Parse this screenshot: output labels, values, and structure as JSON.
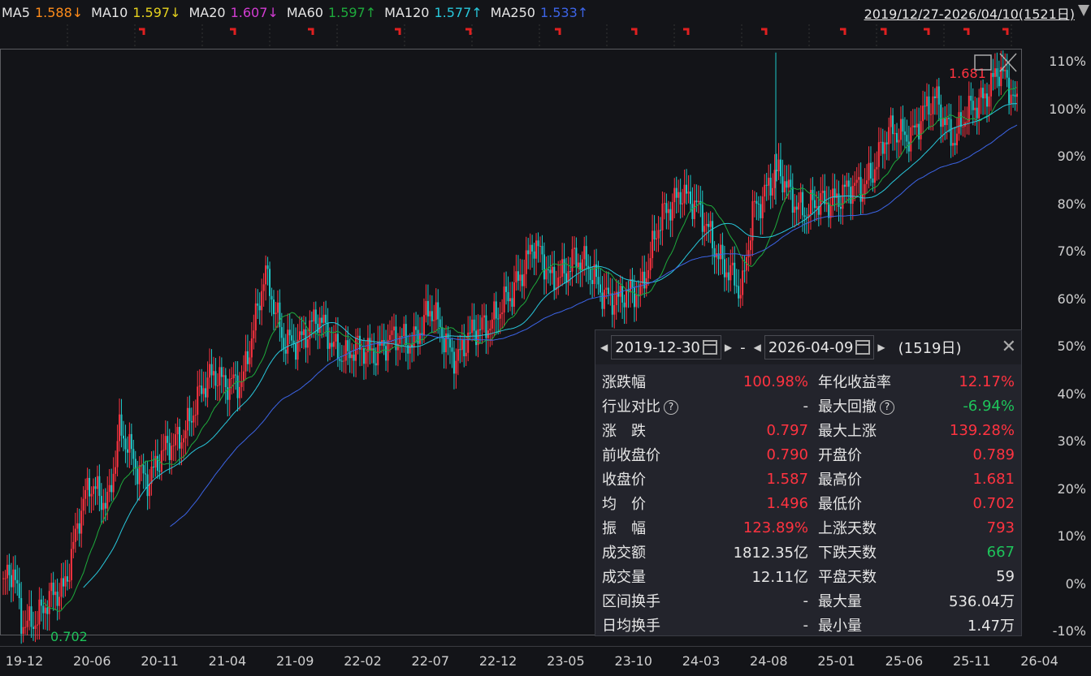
{
  "indicators": [
    {
      "label": "MA5",
      "value": "1.588↓",
      "color": "#ff8c1a"
    },
    {
      "label": "MA10",
      "value": "1.597↓",
      "color": "#e6d21e"
    },
    {
      "label": "MA20",
      "value": "1.607↓",
      "color": "#d23cd2"
    },
    {
      "label": "MA60",
      "value": "1.597↑",
      "color": "#1eaa3c"
    },
    {
      "label": "MA120",
      "value": "1.577↑",
      "color": "#28c8dc"
    },
    {
      "label": "MA250",
      "value": "1.533↑",
      "color": "#3c64e6"
    }
  ],
  "range_label": "2019/12/27-2026/04/10(1521日)",
  "chart_data": {
    "type": "candlestick",
    "y_unit": "%",
    "ylim": [
      -12,
      115
    ],
    "yticks": [
      "110%",
      "100%",
      "90%",
      "80%",
      "70%",
      "60%",
      "50%",
      "40%",
      "30%",
      "20%",
      "10%",
      "0%",
      "-10%"
    ],
    "xticks": [
      "19-12",
      "20-06",
      "20-11",
      "21-04",
      "21-09",
      "22-02",
      "22-07",
      "22-12",
      "23-05",
      "23-10",
      "24-03",
      "24-08",
      "25-01",
      "25-06",
      "25-11",
      "26-04"
    ],
    "close_path": [
      [
        "2019-12-27",
        0
      ],
      [
        "2020-01-20",
        2
      ],
      [
        "2020-02-05",
        -8
      ],
      [
        "2020-03-20",
        -6
      ],
      [
        "2020-05-10",
        -1
      ],
      [
        "2020-06-15",
        14
      ],
      [
        "2020-07-10",
        20
      ],
      [
        "2020-08-20",
        18
      ],
      [
        "2020-09-15",
        32
      ],
      [
        "2020-10-20",
        25
      ],
      [
        "2020-11-20",
        23
      ],
      [
        "2021-01-20",
        30
      ],
      [
        "2021-03-10",
        38
      ],
      [
        "2021-04-20",
        45
      ],
      [
        "2021-06-20",
        41
      ],
      [
        "2021-08-10",
        67
      ],
      [
        "2021-09-20",
        50
      ],
      [
        "2021-10-20",
        52
      ],
      [
        "2021-12-10",
        55
      ],
      [
        "2022-02-10",
        48
      ],
      [
        "2022-04-20",
        50
      ],
      [
        "2022-07-10",
        52
      ],
      [
        "2022-08-20",
        57
      ],
      [
        "2022-10-20",
        48
      ],
      [
        "2022-12-20",
        55
      ],
      [
        "2023-02-20",
        60
      ],
      [
        "2023-04-10",
        73
      ],
      [
        "2023-05-20",
        63
      ],
      [
        "2023-07-10",
        69
      ],
      [
        "2023-09-10",
        63
      ],
      [
        "2023-10-20",
        59
      ],
      [
        "2023-12-10",
        63
      ],
      [
        "2024-01-20",
        75
      ],
      [
        "2024-03-10",
        84
      ],
      [
        "2024-05-20",
        73
      ],
      [
        "2024-07-25",
        60
      ],
      [
        "2024-08-20",
        80
      ],
      [
        "2024-10-20",
        86
      ],
      [
        "2024-12-20",
        78
      ],
      [
        "2025-02-20",
        82
      ],
      [
        "2025-04-20",
        83
      ],
      [
        "2025-06-20",
        94
      ],
      [
        "2025-08-20",
        96
      ],
      [
        "2025-10-10",
        102
      ],
      [
        "2025-11-20",
        94
      ],
      [
        "2026-01-20",
        103
      ],
      [
        "2026-02-25",
        108
      ],
      [
        "2026-04-10",
        101
      ]
    ],
    "max_label": "1.681",
    "min_label": "0.702",
    "series": [
      {
        "name": "MA60",
        "color": "#1eaa3c"
      },
      {
        "name": "MA120",
        "color": "#28c8dc"
      },
      {
        "name": "MA250",
        "color": "#3c64e6"
      }
    ],
    "up_color": "#ff3340",
    "down_color": "#1ec8c8"
  },
  "panel": {
    "start_date": "2019-12-30",
    "sep": "-",
    "end_date": "2026-04-09",
    "days": "(1519日)",
    "rows": [
      {
        "k": "涨跌幅",
        "v": "100.98%",
        "vc": "red",
        "k2": "年化收益率",
        "v2": "12.17%",
        "v2c": "red"
      },
      {
        "k": "行业对比",
        "q": true,
        "v": "-",
        "vc": "white",
        "k2": "最大回撤",
        "q2": true,
        "v2": "-6.94%",
        "v2c": "green"
      },
      {
        "k": "涨　跌",
        "v": "0.797",
        "vc": "red",
        "k2": "最大上涨",
        "v2": "139.28%",
        "v2c": "red"
      },
      {
        "k": "前收盘价",
        "v": "0.790",
        "vc": "red",
        "k2": "开盘价",
        "v2": "0.789",
        "v2c": "red"
      },
      {
        "k": "收盘价",
        "v": "1.587",
        "vc": "red",
        "k2": "最高价",
        "v2": "1.681",
        "v2c": "red"
      },
      {
        "k": "均　价",
        "v": "1.496",
        "vc": "red",
        "k2": "最低价",
        "v2": "0.702",
        "v2c": "red"
      },
      {
        "k": "振　幅",
        "v": "123.89%",
        "vc": "red",
        "k2": "上涨天数",
        "v2": "793",
        "v2c": "red"
      },
      {
        "k": "成交额",
        "v": "1812.35亿",
        "vc": "white",
        "k2": "下跌天数",
        "v2": "667",
        "v2c": "green"
      },
      {
        "k": "成交量",
        "v": "12.11亿",
        "vc": "white",
        "k2": "平盘天数",
        "v2": "59",
        "v2c": "white"
      },
      {
        "k": "区间换手",
        "v": "-",
        "vc": "white",
        "k2": "最大量",
        "v2": "536.04万",
        "v2c": "white"
      },
      {
        "k": "日均换手",
        "v": "-",
        "vc": "white",
        "k2": "最小量",
        "v2": "1.47万",
        "v2c": "white"
      }
    ]
  }
}
